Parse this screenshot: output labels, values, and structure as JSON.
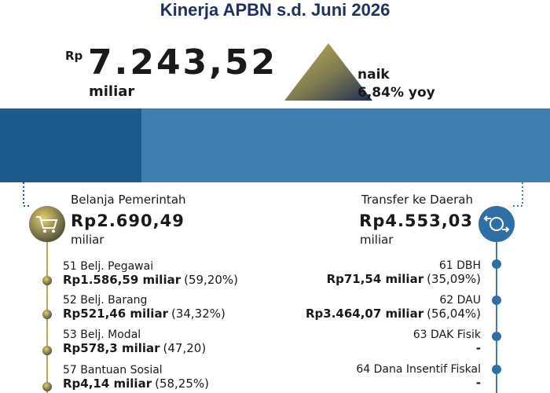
{
  "header": {
    "title": "Kinerja APBN s.d. Juni 2026",
    "currency": "Rp",
    "total": "7.243,52",
    "unit": "miliar",
    "trend": "naik",
    "growth": "6,84% yoy"
  },
  "left": {
    "title": "Belanja Pemerintah",
    "amount": "Rp2.690,49",
    "unit": "miliar",
    "items": [
      {
        "label": "51 Belj. Pegawai",
        "amount": "Rp1.586,59 miliar",
        "share": "(59,20%)"
      },
      {
        "label": "52 Belj. Barang",
        "amount": "Rp521,46 miliar",
        "share": "(34,32%)"
      },
      {
        "label": "53 Belj. Modal",
        "amount": "Rp578,3 miliar",
        "share": "(47,20)"
      },
      {
        "label": "57 Bantuan Sosial",
        "amount": "Rp4,14 miliar",
        "share": "(58,25%)"
      }
    ]
  },
  "right": {
    "title": "Transfer ke Daerah",
    "amount": "Rp4.553,03",
    "unit": "miliar",
    "items": [
      {
        "label": "61 DBH",
        "amount": "Rp71,54 miliar",
        "share": "(35,09%)"
      },
      {
        "label": "62 DAU",
        "amount": "Rp3.464,07 miliar",
        "share": "(56,04%)"
      },
      {
        "label": "63 DAK Fisik",
        "amount": "-"
      },
      {
        "label": "64 Dana Insentif Fiskal",
        "amount": "-"
      }
    ]
  }
}
